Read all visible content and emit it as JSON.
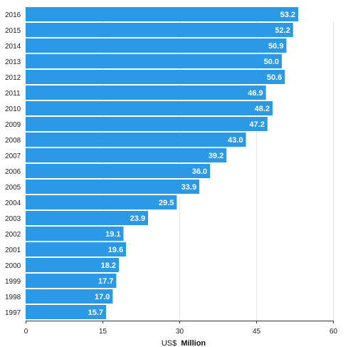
{
  "chart_data": {
    "type": "bar",
    "orientation": "horizontal",
    "categories": [
      "2016",
      "2015",
      "2014",
      "2013",
      "2012",
      "2011",
      "2010",
      "2009",
      "2008",
      "2007",
      "2006",
      "2005",
      "2004",
      "2003",
      "2002",
      "2001",
      "2000",
      "1999",
      "1998",
      "1997"
    ],
    "values": [
      53.2,
      52.2,
      50.9,
      50.0,
      50.6,
      46.9,
      48.2,
      47.2,
      43.0,
      39.2,
      36.0,
      33.9,
      29.5,
      23.9,
      19.1,
      19.6,
      18.2,
      17.7,
      17.0,
      15.7
    ],
    "value_labels": [
      "53.2",
      "52.2",
      "50.9",
      "50.0",
      "50.6",
      "46.9",
      "48.2",
      "47.2",
      "43.0",
      "39.2",
      "36.0",
      "33.9",
      "29.5",
      "23.9",
      "19.1",
      "19.6",
      "18.2",
      "17.7",
      "17.0",
      "15.7"
    ],
    "xlim": [
      0,
      60
    ],
    "xticks": [
      0,
      15,
      30,
      45,
      60
    ],
    "xtick_labels": [
      "0",
      "15",
      "30",
      "45",
      "60"
    ],
    "xlabel_prefix": "US$",
    "xlabel_bold": "Million",
    "grid": "vertical",
    "legend": "none",
    "bar_color": "#2b99e6",
    "label_color": "#ffffff",
    "grid_color": "#e6e6e6"
  }
}
